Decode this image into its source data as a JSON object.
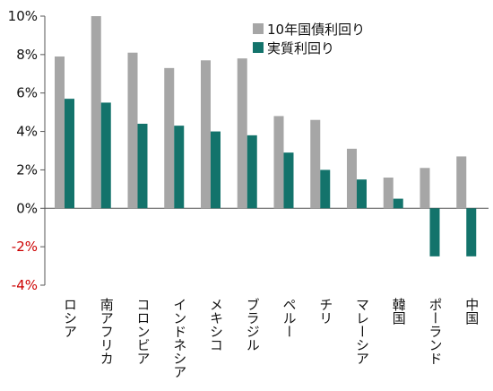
{
  "chart_data": {
    "type": "bar",
    "categories": [
      "ロシア",
      "南アフリカ",
      "コロンビア",
      "インドネシア",
      "メキシコ",
      "ブラジル",
      "ペルー",
      "チリ",
      "マレーシア",
      "韓国",
      "ポーランド",
      "中国"
    ],
    "series": [
      {
        "name": "10年国債利回り",
        "color": "#a6a6a6",
        "values": [
          7.9,
          10.0,
          8.1,
          7.3,
          7.7,
          7.8,
          4.8,
          4.6,
          3.1,
          1.6,
          2.1,
          2.7
        ]
      },
      {
        "name": "実質利回り",
        "color": "#13736b",
        "values": [
          5.7,
          5.5,
          4.4,
          4.3,
          4.0,
          3.8,
          2.9,
          2.0,
          1.5,
          0.5,
          -2.5,
          -2.5
        ]
      }
    ],
    "ylim": [
      -4,
      10
    ],
    "yticks": [
      10,
      8,
      6,
      4,
      2,
      0,
      -2,
      -4
    ],
    "ytick_labels": [
      "10%",
      "8%",
      "6%",
      "4%",
      "2%",
      "0%",
      "-2%",
      "-4%"
    ],
    "negative_tick_color": "#cc0000",
    "legend_position": "top-right",
    "grid": false
  }
}
